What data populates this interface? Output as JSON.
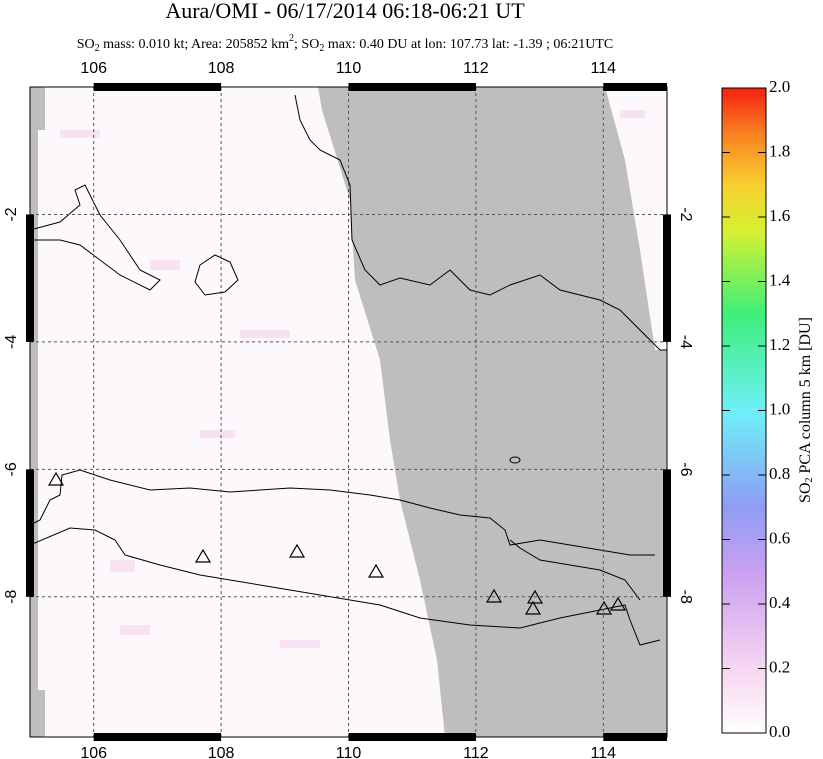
{
  "chart_data": {
    "type": "map",
    "title": "Aura/OMI - 06/17/2014 06:18-06:21 UT",
    "subtitle": [
      "SO",
      "2",
      " mass: 0.010 kt; Area: 205852 km",
      "2",
      "; SO",
      "2",
      " max: 0.40 DU at lon: 107.73 lat: -1.39 ; 06:21UTC"
    ],
    "xlim": [
      105,
      115
    ],
    "xticks": [
      106,
      108,
      110,
      112,
      114
    ],
    "ylim": [
      -10.2,
      0
    ],
    "yticks": [
      -2,
      -4,
      -6,
      -8
    ],
    "grid": true,
    "colorbar": {
      "label": [
        "SO",
        "2",
        " PCA column 5 km [DU]"
      ],
      "lim": [
        0,
        2
      ],
      "ticks": [
        {
          "value": 0,
          "label": "0.0"
        },
        0.2,
        0.4,
        0.6,
        0.8,
        {
          "value": 1,
          "label": "1.0"
        },
        1.2,
        1.4,
        1.6,
        1.8,
        {
          "value": 2,
          "label": "2.0"
        }
      ]
    }
  }
}
